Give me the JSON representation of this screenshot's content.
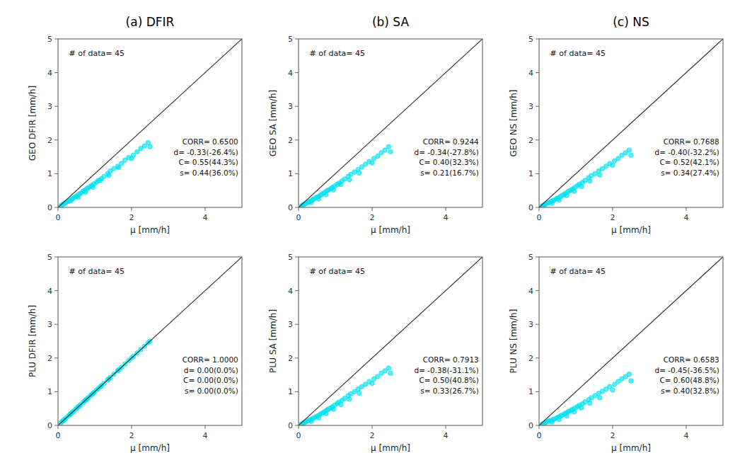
{
  "chart_data": [
    {
      "type": "scatter",
      "title": "(a)  DFIR",
      "x_label": "μ [mm/h]",
      "y_label": "GEO DFIR [mm/h]",
      "xlim": [
        0,
        5
      ],
      "ylim": [
        0,
        5
      ],
      "xticks": [
        0,
        2,
        4
      ],
      "yticks": [
        0,
        1,
        2,
        3,
        4,
        5
      ],
      "grid": false,
      "annotations": [
        "# of data= 45",
        "CORR= 0.6500",
        "d= -0.33(-26.4%)",
        "C= 0.55(44.3%)",
        "s= 0.44(36.0%)"
      ],
      "series": [
        {
          "type": "scatter",
          "marker": "circle",
          "color": "#00e0f0",
          "x": [
            0.08,
            0.12,
            0.15,
            0.18,
            0.22,
            0.28,
            0.32,
            0.38,
            0.42,
            0.48,
            0.52,
            0.58,
            0.62,
            0.68,
            0.72,
            0.78,
            0.82,
            0.88,
            0.92,
            0.98,
            1.05,
            1.1,
            1.18,
            1.25,
            1.35,
            1.42,
            1.52,
            1.62,
            1.72,
            1.82,
            1.92,
            2.05,
            2.15,
            2.25,
            2.35,
            2.45,
            0.35,
            0.55,
            0.75,
            0.95,
            1.15,
            1.38,
            1.65,
            2.0,
            2.5
          ],
          "values": [
            0.05,
            0.08,
            0.1,
            0.12,
            0.15,
            0.18,
            0.2,
            0.25,
            0.28,
            0.32,
            0.35,
            0.4,
            0.42,
            0.48,
            0.5,
            0.55,
            0.58,
            0.62,
            0.65,
            0.7,
            0.75,
            0.8,
            0.85,
            0.92,
            1.0,
            1.08,
            1.15,
            1.22,
            1.3,
            1.4,
            1.48,
            1.55,
            1.65,
            1.75,
            1.82,
            1.92,
            0.2,
            0.3,
            0.45,
            0.6,
            0.8,
            0.95,
            1.18,
            1.45,
            1.8
          ]
        },
        {
          "type": "line",
          "line_style": "solid",
          "color": "#333333",
          "x": [
            0,
            5
          ],
          "values": [
            0,
            5
          ]
        }
      ]
    },
    {
      "type": "scatter",
      "title": "(b)  SA",
      "x_label": "μ [mm/h]",
      "y_label": "GEO SA [mm/h]",
      "xlim": [
        0,
        5
      ],
      "ylim": [
        0,
        5
      ],
      "xticks": [
        0,
        2,
        4
      ],
      "yticks": [
        0,
        1,
        2,
        3,
        4,
        5
      ],
      "grid": false,
      "annotations": [
        "# of data= 45",
        "CORR= 0.9244",
        "d= -0.34(-27.8%)",
        "C= 0.40(32.3%)",
        "s= 0.21(16.7%)"
      ],
      "series": [
        {
          "type": "scatter",
          "marker": "circle",
          "color": "#00e0f0",
          "x": [
            0.08,
            0.12,
            0.15,
            0.18,
            0.22,
            0.28,
            0.32,
            0.38,
            0.42,
            0.48,
            0.52,
            0.58,
            0.62,
            0.68,
            0.72,
            0.78,
            0.82,
            0.88,
            0.92,
            0.98,
            1.05,
            1.1,
            1.18,
            1.25,
            1.35,
            1.42,
            1.52,
            1.62,
            1.72,
            1.82,
            1.92,
            2.05,
            2.15,
            2.25,
            2.35,
            2.45,
            0.35,
            0.55,
            0.75,
            0.95,
            1.15,
            1.38,
            1.65,
            2.0,
            2.5
          ],
          "values": [
            0.04,
            0.07,
            0.09,
            0.11,
            0.13,
            0.16,
            0.19,
            0.22,
            0.25,
            0.29,
            0.31,
            0.35,
            0.38,
            0.42,
            0.45,
            0.5,
            0.52,
            0.56,
            0.59,
            0.63,
            0.68,
            0.72,
            0.78,
            0.84,
            0.92,
            0.98,
            1.05,
            1.12,
            1.2,
            1.28,
            1.36,
            1.45,
            1.52,
            1.62,
            1.7,
            1.8,
            0.15,
            0.25,
            0.38,
            0.52,
            0.68,
            0.82,
            1.02,
            1.32,
            1.65
          ]
        },
        {
          "type": "line",
          "line_style": "solid",
          "color": "#333333",
          "x": [
            0,
            5
          ],
          "values": [
            0,
            5
          ]
        }
      ]
    },
    {
      "type": "scatter",
      "title": "(c)  NS",
      "x_label": "μ [mm/h]",
      "y_label": "GEO NS [mm/h]",
      "xlim": [
        0,
        5
      ],
      "ylim": [
        0,
        5
      ],
      "xticks": [
        0,
        2,
        4
      ],
      "yticks": [
        0,
        1,
        2,
        3,
        4,
        5
      ],
      "grid": false,
      "annotations": [
        "# of data= 45",
        "CORR= 0.7688",
        "d= -0.40(-32.2%)",
        "C= 0.52(42.1%)",
        "s= 0.34(27.4%)"
      ],
      "series": [
        {
          "type": "scatter",
          "marker": "circle",
          "color": "#00e0f0",
          "x": [
            0.08,
            0.12,
            0.15,
            0.18,
            0.22,
            0.28,
            0.32,
            0.38,
            0.42,
            0.48,
            0.52,
            0.58,
            0.62,
            0.68,
            0.72,
            0.78,
            0.82,
            0.88,
            0.92,
            0.98,
            1.05,
            1.1,
            1.18,
            1.25,
            1.35,
            1.42,
            1.52,
            1.62,
            1.72,
            1.82,
            1.92,
            2.05,
            2.15,
            2.25,
            2.35,
            2.45,
            0.35,
            0.55,
            0.75,
            0.95,
            1.15,
            1.38,
            1.65,
            2.0,
            2.5
          ],
          "values": [
            0.04,
            0.06,
            0.08,
            0.1,
            0.12,
            0.15,
            0.17,
            0.2,
            0.22,
            0.26,
            0.28,
            0.32,
            0.35,
            0.38,
            0.42,
            0.46,
            0.49,
            0.52,
            0.55,
            0.6,
            0.65,
            0.69,
            0.74,
            0.8,
            0.88,
            0.94,
            1.0,
            1.08,
            1.15,
            1.22,
            1.3,
            1.38,
            1.45,
            1.55,
            1.62,
            1.7,
            0.12,
            0.22,
            0.35,
            0.48,
            0.62,
            0.78,
            0.96,
            1.25,
            1.55
          ]
        },
        {
          "type": "line",
          "line_style": "solid",
          "color": "#333333",
          "x": [
            0,
            5
          ],
          "values": [
            0,
            5
          ]
        }
      ]
    },
    {
      "type": "scatter",
      "x_label": "μ [mm/h]",
      "y_label": "PLU DFIR [mm/h]",
      "xlim": [
        0,
        5
      ],
      "ylim": [
        0,
        5
      ],
      "xticks": [
        0,
        2,
        4
      ],
      "yticks": [
        0,
        1,
        2,
        3,
        4,
        5
      ],
      "grid": false,
      "annotations": [
        "# of data= 45",
        "CORR= 1.0000",
        "d=  0.00(0.0%)",
        "C= 0.00(0.0%)",
        "s= 0.00(0.0%)"
      ],
      "series": [
        {
          "type": "scatter",
          "marker": "circle",
          "color": "#00e0f0",
          "x": [
            0.08,
            0.12,
            0.15,
            0.18,
            0.22,
            0.28,
            0.32,
            0.38,
            0.42,
            0.48,
            0.52,
            0.58,
            0.62,
            0.68,
            0.72,
            0.78,
            0.82,
            0.88,
            0.92,
            0.98,
            1.05,
            1.1,
            1.18,
            1.25,
            1.35,
            1.42,
            1.52,
            1.62,
            1.72,
            1.82,
            1.92,
            2.05,
            2.15,
            2.25,
            2.35,
            2.45,
            0.35,
            0.55,
            0.75,
            0.95,
            1.15,
            1.38,
            1.65,
            2.0,
            2.5
          ],
          "values": [
            0.08,
            0.12,
            0.15,
            0.18,
            0.22,
            0.28,
            0.32,
            0.38,
            0.42,
            0.48,
            0.52,
            0.58,
            0.62,
            0.68,
            0.72,
            0.78,
            0.82,
            0.88,
            0.92,
            0.98,
            1.05,
            1.1,
            1.18,
            1.25,
            1.35,
            1.42,
            1.52,
            1.62,
            1.72,
            1.82,
            1.92,
            2.05,
            2.15,
            2.25,
            2.35,
            2.45,
            0.35,
            0.55,
            0.75,
            0.95,
            1.15,
            1.38,
            1.65,
            2.0,
            2.5
          ]
        },
        {
          "type": "line",
          "line_style": "solid",
          "color": "#333333",
          "x": [
            0,
            5
          ],
          "values": [
            0,
            5
          ]
        }
      ]
    },
    {
      "type": "scatter",
      "x_label": "μ [mm/h]",
      "y_label": "PLU SA [mm/h]",
      "xlim": [
        0,
        5
      ],
      "ylim": [
        0,
        5
      ],
      "xticks": [
        0,
        2,
        4
      ],
      "yticks": [
        0,
        1,
        2,
        3,
        4,
        5
      ],
      "grid": false,
      "annotations": [
        "# of data= 45",
        "CORR= 0.7913",
        "d= -0.38(-31.1%)",
        "C= 0.50(40.8%)",
        "s= 0.33(26.7%)"
      ],
      "series": [
        {
          "type": "scatter",
          "marker": "circle",
          "color": "#00e0f0",
          "x": [
            0.08,
            0.12,
            0.15,
            0.18,
            0.22,
            0.28,
            0.32,
            0.38,
            0.42,
            0.48,
            0.52,
            0.58,
            0.62,
            0.68,
            0.72,
            0.78,
            0.82,
            0.88,
            0.92,
            0.98,
            1.05,
            1.1,
            1.18,
            1.25,
            1.35,
            1.42,
            1.52,
            1.62,
            1.72,
            1.82,
            1.92,
            2.05,
            2.15,
            2.25,
            2.35,
            2.45,
            0.35,
            0.55,
            0.75,
            0.95,
            1.15,
            1.38,
            1.65,
            2.0,
            2.5
          ],
          "values": [
            0.04,
            0.06,
            0.08,
            0.1,
            0.12,
            0.15,
            0.17,
            0.2,
            0.22,
            0.26,
            0.28,
            0.32,
            0.35,
            0.38,
            0.42,
            0.46,
            0.49,
            0.52,
            0.55,
            0.6,
            0.65,
            0.69,
            0.74,
            0.8,
            0.88,
            0.94,
            1.0,
            1.08,
            1.15,
            1.22,
            1.3,
            1.38,
            1.45,
            1.55,
            1.62,
            1.7,
            0.12,
            0.22,
            0.35,
            0.48,
            0.62,
            0.78,
            0.96,
            1.25,
            1.55
          ]
        },
        {
          "type": "line",
          "line_style": "solid",
          "color": "#333333",
          "x": [
            0,
            5
          ],
          "values": [
            0,
            5
          ]
        }
      ]
    },
    {
      "type": "scatter",
      "x_label": "μ [mm/h]",
      "y_label": "PLU NS [mm/h]",
      "xlim": [
        0,
        5
      ],
      "ylim": [
        0,
        5
      ],
      "xticks": [
        0,
        2,
        4
      ],
      "yticks": [
        0,
        1,
        2,
        3,
        4,
        5
      ],
      "grid": false,
      "annotations": [
        "# of data= 45",
        "CORR= 0.6583",
        "d= -0.45(-36.5%)",
        "C= 0.60(48.8%)",
        "s= 0.40(32.8%)"
      ],
      "series": [
        {
          "type": "scatter",
          "marker": "circle",
          "color": "#00e0f0",
          "x": [
            0.08,
            0.12,
            0.15,
            0.18,
            0.22,
            0.28,
            0.32,
            0.38,
            0.42,
            0.48,
            0.52,
            0.58,
            0.62,
            0.68,
            0.72,
            0.78,
            0.82,
            0.88,
            0.92,
            0.98,
            1.05,
            1.1,
            1.18,
            1.25,
            1.35,
            1.42,
            1.52,
            1.62,
            1.72,
            1.82,
            1.92,
            2.05,
            2.15,
            2.25,
            2.35,
            2.45,
            0.35,
            0.55,
            0.75,
            0.95,
            1.15,
            1.38,
            1.65,
            2.0,
            2.5
          ],
          "values": [
            0.03,
            0.05,
            0.07,
            0.09,
            0.11,
            0.13,
            0.15,
            0.17,
            0.19,
            0.22,
            0.24,
            0.28,
            0.3,
            0.33,
            0.36,
            0.4,
            0.42,
            0.45,
            0.48,
            0.52,
            0.56,
            0.6,
            0.64,
            0.7,
            0.76,
            0.82,
            0.88,
            0.95,
            1.01,
            1.08,
            1.15,
            1.22,
            1.3,
            1.38,
            1.45,
            1.52,
            0.1,
            0.18,
            0.28,
            0.4,
            0.52,
            0.66,
            0.82,
            1.05,
            1.32
          ]
        },
        {
          "type": "line",
          "line_style": "solid",
          "color": "#333333",
          "x": [
            0,
            5
          ],
          "values": [
            0,
            5
          ]
        }
      ]
    }
  ]
}
